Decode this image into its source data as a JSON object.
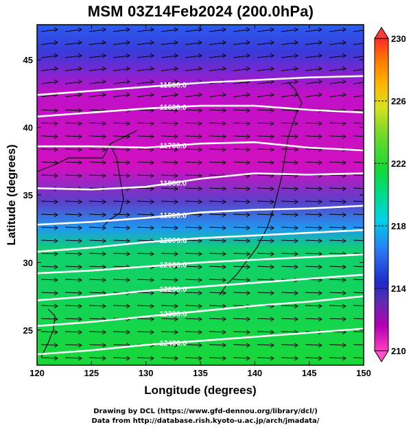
{
  "title": "MSM 03Z14Feb2024 (200.0hPa)",
  "credits": {
    "line1": "Drawing by DCL (https://www.gfd-dennou.org/library/dcl/)",
    "line2": "Data from http://database.rish.kyoto-u.ac.jp/arch/jmadata/"
  },
  "chart_data": {
    "type": "heatmap",
    "title": "MSM 03Z14Feb2024 (200.0hPa)",
    "xlabel": "Longitude (degrees)",
    "ylabel": "Latitude  (degrees)",
    "xlim": [
      120,
      150
    ],
    "ylim": [
      22.4,
      47.6
    ],
    "x_ticks": [
      120,
      125,
      130,
      135,
      140,
      145,
      150
    ],
    "y_ticks": [
      25,
      30,
      35,
      40,
      45
    ],
    "field": "temperature (K), shaded",
    "colorbar": {
      "min": 210,
      "max": 230,
      "ticks": [
        210,
        214,
        218,
        222,
        226,
        230
      ],
      "colors": [
        "#ff40c0",
        "#b000b0",
        "#5a2cb0",
        "#1e2cc8",
        "#2a78f0",
        "#00d2e6",
        "#00d98a",
        "#14d838",
        "#7ad82a",
        "#d8e222",
        "#ffb000",
        "#ff7a00",
        "#ff2a2a"
      ]
    },
    "contours": {
      "field": "geopotential height (m)",
      "lines": [
        {
          "value": 11500,
          "label": "11500.0",
          "lats": [
            42.4,
            42.7,
            43.0,
            43.3,
            43.5,
            43.7,
            43.8
          ]
        },
        {
          "value": 11600,
          "label": "11600.0",
          "lats": [
            40.8,
            41.1,
            41.4,
            41.6,
            41.6,
            41.3,
            41.1
          ]
        },
        {
          "value": 11700,
          "label": "11700.0",
          "lats": [
            38.6,
            38.6,
            38.5,
            38.8,
            38.9,
            38.5,
            38.3
          ]
        },
        {
          "value": 11800,
          "label": "11800.0",
          "lats": [
            35.5,
            35.4,
            35.6,
            36.2,
            36.6,
            36.5,
            36.6
          ]
        },
        {
          "value": 11900,
          "label": "11900.0",
          "lats": [
            32.8,
            33.0,
            33.3,
            33.7,
            33.9,
            34.0,
            34.2
          ]
        },
        {
          "value": 12000,
          "label": "12000.0",
          "lats": [
            30.8,
            31.1,
            31.5,
            31.8,
            32.0,
            32.2,
            32.4
          ]
        },
        {
          "value": 12100,
          "label": "12100.0",
          "lats": [
            29.2,
            29.4,
            29.7,
            30.0,
            30.2,
            30.4,
            30.6
          ]
        },
        {
          "value": 12200,
          "label": "12200.0",
          "lats": [
            27.2,
            27.5,
            27.9,
            28.2,
            28.5,
            28.8,
            29.1
          ]
        },
        {
          "value": 12300,
          "label": "12300.0",
          "lats": [
            25.3,
            25.6,
            26.0,
            26.4,
            26.8,
            27.1,
            27.5
          ]
        },
        {
          "value": 12400,
          "label": "12400.0",
          "lats": [
            23.2,
            23.5,
            23.9,
            24.2,
            24.5,
            24.8,
            25.1
          ]
        }
      ]
    },
    "wind_vectors": "westerly arrows across the domain"
  }
}
